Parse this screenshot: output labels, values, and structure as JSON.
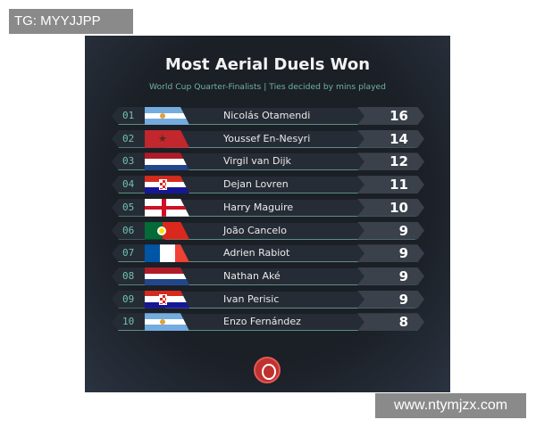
{
  "watermarks": {
    "top_left": "TG: MYYJJPP",
    "bottom_right": "www.ntymjzx.com"
  },
  "title": "Most Aerial Duels Won",
  "subtitle": "World Cup Quarter-Finalists | Ties decided by mins played",
  "colors": {
    "accent": "#6fc2ae",
    "background": "#1b1f26",
    "logo": "#c0312f"
  },
  "rows": [
    {
      "rank": "01",
      "flag": "argentina",
      "name": "Nicolás Otamendi",
      "value": "16"
    },
    {
      "rank": "02",
      "flag": "morocco",
      "name": "Youssef En-Nesyri",
      "value": "14"
    },
    {
      "rank": "03",
      "flag": "netherlands",
      "name": "Virgil van Dijk",
      "value": "12"
    },
    {
      "rank": "04",
      "flag": "croatia",
      "name": "Dejan Lovren",
      "value": "11"
    },
    {
      "rank": "05",
      "flag": "england",
      "name": "Harry Maguire",
      "value": "10"
    },
    {
      "rank": "06",
      "flag": "portugal",
      "name": "João Cancelo",
      "value": "9"
    },
    {
      "rank": "07",
      "flag": "france",
      "name": "Adrien Rabiot",
      "value": "9"
    },
    {
      "rank": "08",
      "flag": "netherlands",
      "name": "Nathan Aké",
      "value": "9"
    },
    {
      "rank": "09",
      "flag": "croatia",
      "name": "Ivan Perisic",
      "value": "9"
    },
    {
      "rank": "10",
      "flag": "argentina",
      "name": "Enzo Fernández",
      "value": "8"
    }
  ]
}
